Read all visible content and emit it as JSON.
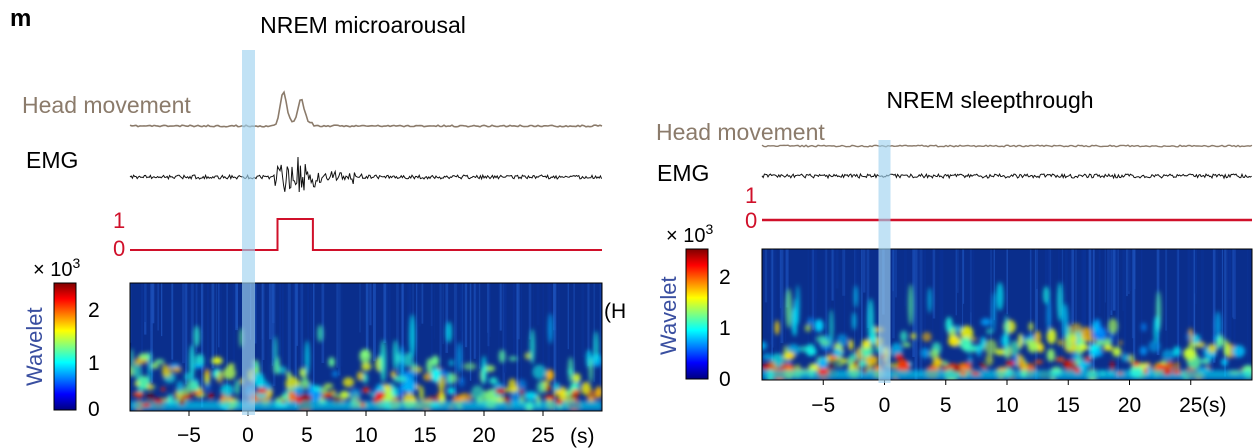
{
  "panel_letter": "m",
  "colors": {
    "head": "#8b7b6b",
    "emg": "#111111",
    "state": "#d0102a",
    "highlight": "#9fd3ef",
    "wavelet_label": "#3a4fa0"
  },
  "colorbar": {
    "colormap": "jet",
    "range": [
      0,
      2500
    ],
    "multiplier": "× 10",
    "multiplier_exp": "3",
    "ticks": [
      "2",
      "1",
      "0"
    ]
  },
  "chart_data": [
    {
      "type": "time-series-with-spectrogram",
      "title": "NREM microarousal",
      "traces": [
        "Head movement",
        "EMG"
      ],
      "state_trace": {
        "levels": [
          "1",
          "0"
        ],
        "steps": [
          [
            -10,
            0
          ],
          [
            2.5,
            1
          ],
          [
            5.5,
            0
          ],
          [
            30,
            0
          ]
        ]
      },
      "spectrogram_label": "Wavelet",
      "xlim": [
        -10,
        30
      ],
      "xticks": [
        "−5",
        "0",
        "5",
        "10",
        "15",
        "20",
        "25"
      ],
      "xunit": "(s)",
      "event_time": 0,
      "head_peaks": [
        3,
        4.5
      ],
      "emg_burst": [
        2.2,
        10
      ],
      "cutoff_label": "(H"
    },
    {
      "type": "time-series-with-spectrogram",
      "title": "NREM sleepthrough",
      "traces": [
        "Head movement",
        "EMG"
      ],
      "state_trace": {
        "levels": [
          "1",
          "0"
        ],
        "steps": [
          [
            -10,
            0
          ],
          [
            30,
            0
          ]
        ]
      },
      "spectrogram_label": "Wavelet",
      "xlim": [
        -10,
        30
      ],
      "xticks": [
        "−5",
        "0",
        "5",
        "10",
        "15",
        "20",
        "25"
      ],
      "xunit": "(s)",
      "event_time": 0
    }
  ]
}
